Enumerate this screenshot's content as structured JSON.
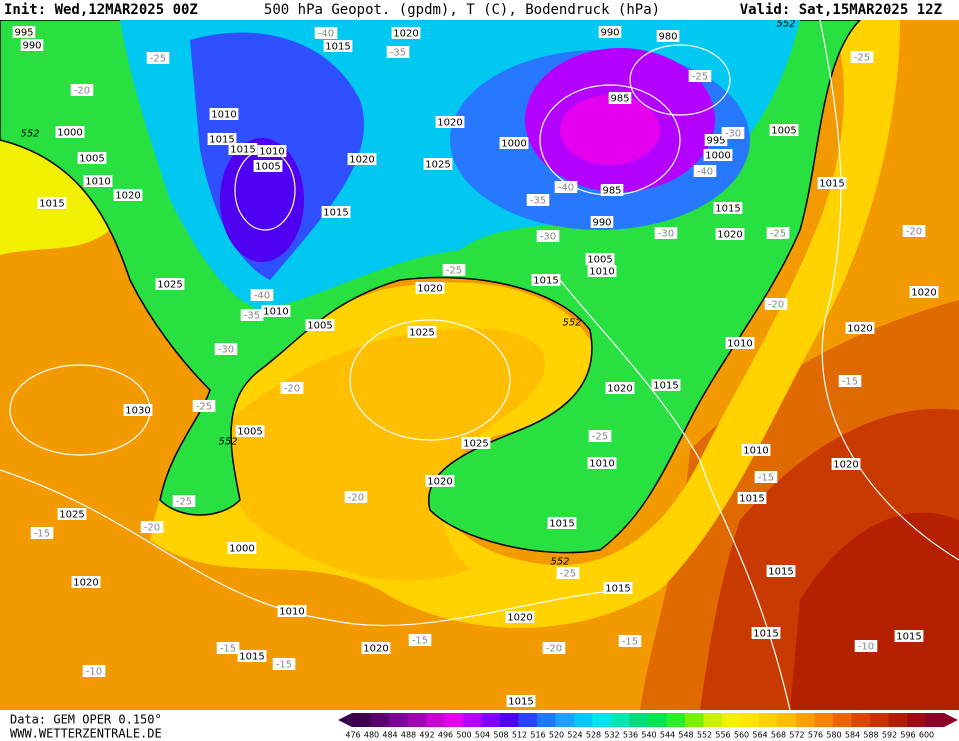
{
  "header": {
    "init": "Init: Wed,12MAR2025 00Z",
    "title": "500 hPa Geopot. (gpdm), T (C), Bodendruck (hPa)",
    "valid": "Valid: Sat,15MAR2025 12Z"
  },
  "map": {
    "isobar_labels": [
      995,
      990,
      1000,
      1005,
      1010,
      1020,
      1015,
      1015,
      1020,
      1010,
      1015,
      1015,
      1010,
      1005,
      1020,
      1025,
      1020,
      1000,
      990,
      980,
      985,
      995,
      1000,
      1005,
      985,
      990,
      1015,
      1025,
      1020,
      1010,
      1005,
      1015,
      1020,
      1005,
      1010,
      1015,
      1015,
      1025,
      1030,
      1005,
      1010,
      1015,
      1020,
      1025,
      1020,
      1010,
      1010,
      1015,
      1020,
      1020,
      1020,
      1015,
      1000,
      1025,
      1020,
      1010,
      1015,
      1020,
      1015,
      1020,
      1015,
      1015,
      1015,
      1015
    ],
    "temperature_labels": [
      -40,
      -35,
      -25,
      -20,
      -25,
      -30,
      -40,
      -40,
      -35,
      -30,
      -30,
      -25,
      -20,
      -25,
      -40,
      -35,
      -30,
      -25,
      -20,
      -25,
      -20,
      -15,
      -25,
      -15,
      -20,
      -25,
      -20,
      -15,
      -25,
      -15,
      -15,
      -15,
      -20,
      -15,
      -10,
      -10
    ],
    "geopotential_labels": [
      552,
      552,
      552,
      552,
      552
    ]
  },
  "scale": {
    "labels": [
      476,
      480,
      484,
      488,
      492,
      496,
      500,
      504,
      508,
      512,
      516,
      520,
      524,
      528,
      532,
      536,
      540,
      544,
      548,
      552,
      556,
      560,
      564,
      568,
      572,
      576,
      580,
      584,
      588,
      592,
      596,
      600
    ],
    "colors": [
      "#3c0050",
      "#5a006e",
      "#7d0096",
      "#a000b4",
      "#c800d2",
      "#e600f0",
      "#b400ff",
      "#8200ff",
      "#5000f0",
      "#2846ff",
      "#1e78ff",
      "#1ea0ff",
      "#00c8ff",
      "#00e6f0",
      "#00e6b4",
      "#00dc78",
      "#00e650",
      "#28f028",
      "#78f000",
      "#c8f000",
      "#f0f000",
      "#ffe600",
      "#ffd200",
      "#ffbe00",
      "#ffa000",
      "#f58200",
      "#eb6400",
      "#dc4600",
      "#c83200",
      "#b41e00",
      "#a00a14",
      "#8c0028"
    ]
  },
  "footer": {
    "data": "Data: GEM OPER 0.150°",
    "site": "WWW.WETTERZENTRALE.DE"
  }
}
